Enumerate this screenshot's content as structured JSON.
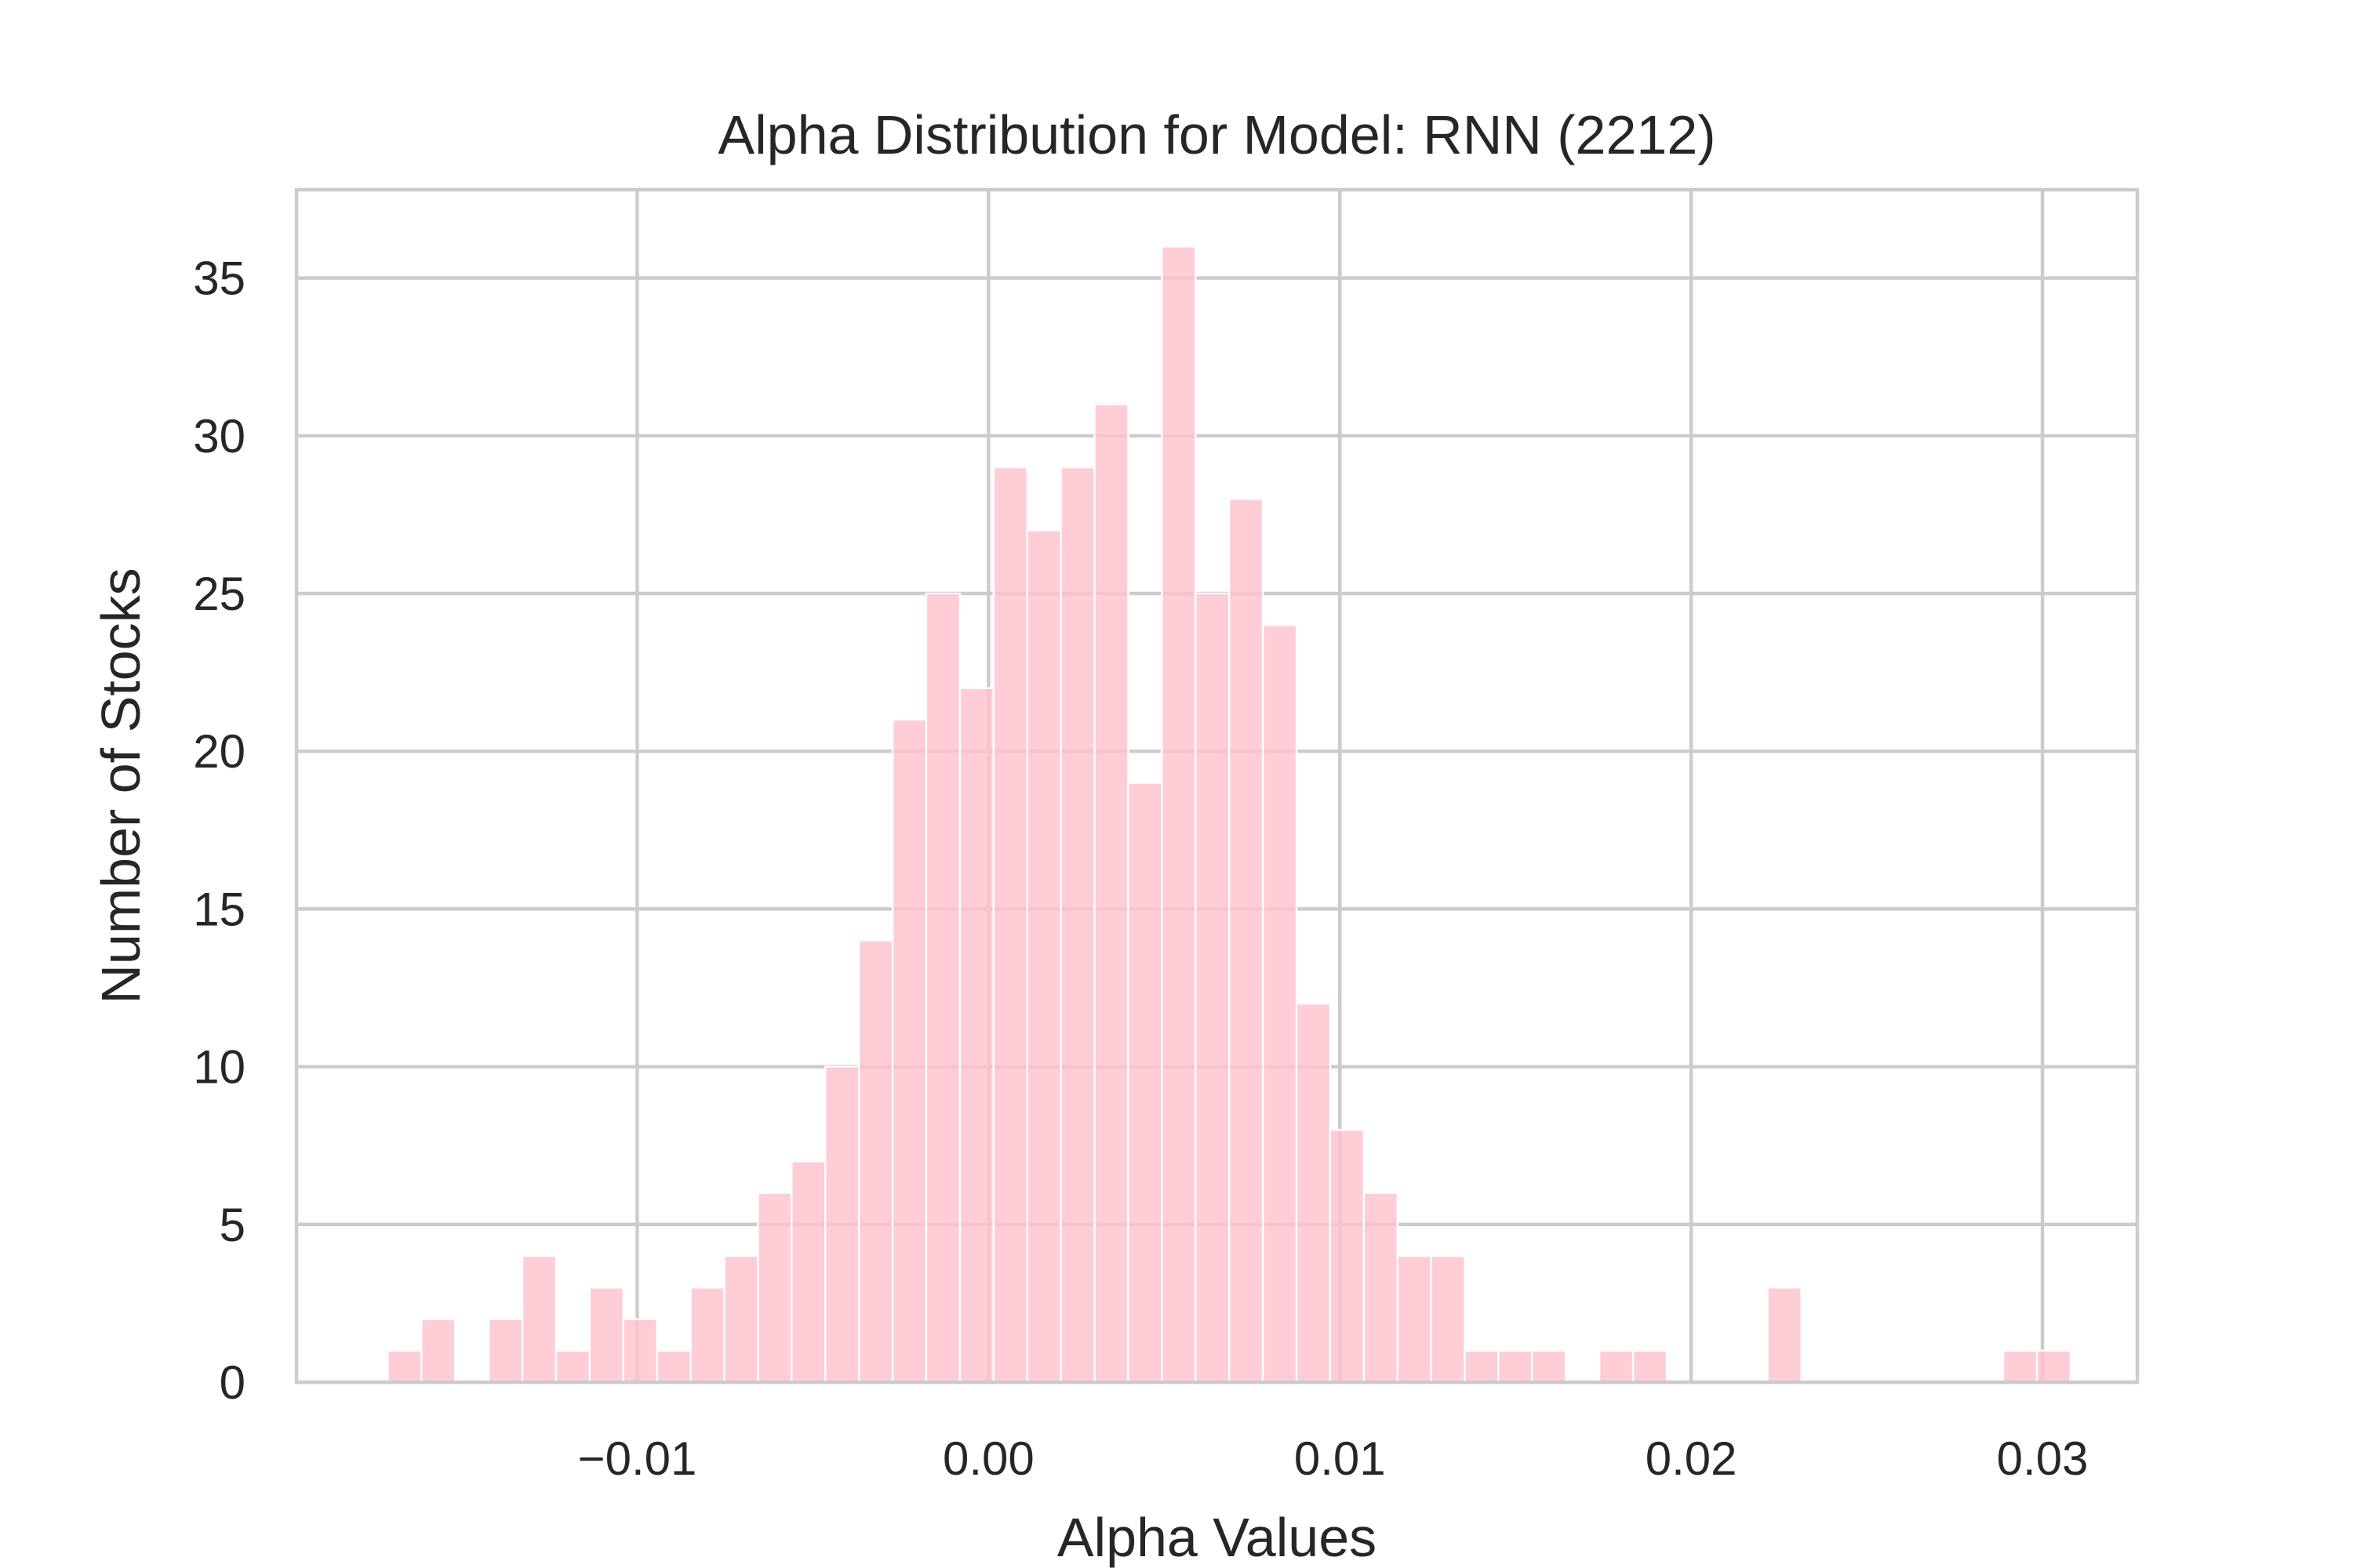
{
  "chart_data": {
    "type": "bar",
    "title": "Alpha Distribution for Model: RNN (2212)",
    "xlabel": "Alpha Values",
    "ylabel": "Number of Stocks",
    "xlim": [
      -0.0197,
      0.0327
    ],
    "ylim": [
      0,
      37.8
    ],
    "xticks": [
      -0.01,
      0.0,
      0.01,
      0.02,
      0.03
    ],
    "xtick_labels": [
      "−0.01",
      "0.00",
      "0.01",
      "0.02",
      "0.03"
    ],
    "yticks": [
      0,
      5,
      10,
      15,
      20,
      25,
      30,
      35
    ],
    "ytick_labels": [
      "0",
      "5",
      "10",
      "15",
      "20",
      "25",
      "30",
      "35"
    ],
    "grid": true,
    "bar_color": "#ffc0cb",
    "bin_start": -0.0171,
    "bin_width": 0.000958,
    "counts": [
      1,
      2,
      0,
      2,
      4,
      1,
      3,
      2,
      1,
      3,
      4,
      6,
      7,
      10,
      14,
      21,
      25,
      22,
      29,
      27,
      29,
      31,
      19,
      36,
      25,
      28,
      24,
      12,
      8,
      6,
      4,
      4,
      1,
      1,
      1,
      0,
      1,
      1,
      0,
      0,
      0,
      3,
      0,
      0,
      0,
      0,
      0,
      0,
      1,
      1
    ]
  }
}
